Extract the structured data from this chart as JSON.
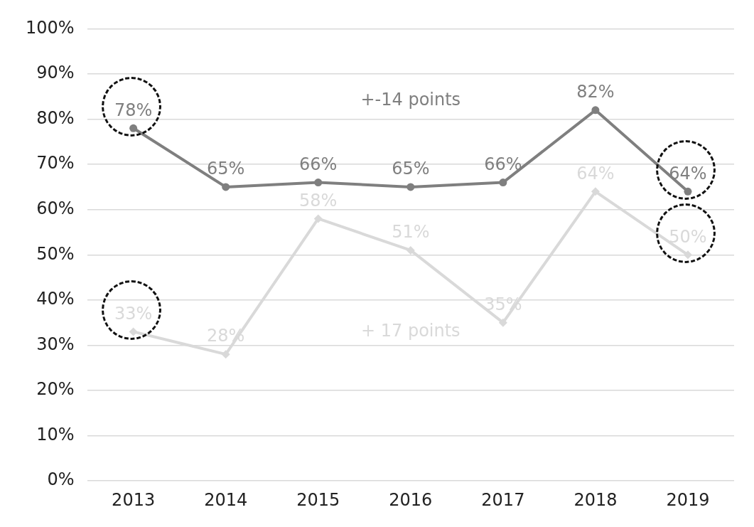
{
  "chart_data": {
    "type": "line",
    "categories": [
      "2013",
      "2014",
      "2015",
      "2016",
      "2017",
      "2018",
      "2019"
    ],
    "series": [
      {
        "color": "#7f7f7f",
        "marker": "circle",
        "values": [
          78,
          65,
          66,
          65,
          66,
          82,
          64
        ],
        "value_labels": [
          "78%",
          "65%",
          "66%",
          "65%",
          "66%",
          "82%",
          "64%"
        ]
      },
      {
        "color": "#d9d9d9",
        "marker": "diamond",
        "values": [
          33,
          28,
          58,
          51,
          35,
          64,
          50
        ],
        "value_labels": [
          "33%",
          "28%",
          "58%",
          "51%",
          "35%",
          "64%",
          "50%"
        ]
      }
    ],
    "ylim": [
      0,
      100
    ],
    "yticks": [
      {
        "value": 0,
        "label": "0%"
      },
      {
        "value": 10,
        "label": "10%"
      },
      {
        "value": 20,
        "label": "20%"
      },
      {
        "value": 30,
        "label": "30%"
      },
      {
        "value": 40,
        "label": "40%"
      },
      {
        "value": 50,
        "label": "50%"
      },
      {
        "value": 60,
        "label": "60%"
      },
      {
        "value": 70,
        "label": "70%"
      },
      {
        "value": 80,
        "label": "80%"
      },
      {
        "value": 90,
        "label": "90%"
      },
      {
        "value": 100,
        "label": "100%"
      }
    ],
    "grid": "y",
    "legend": false,
    "line_style": "solid",
    "annotations": [
      "+-14 points",
      "+ 17 points"
    ]
  }
}
